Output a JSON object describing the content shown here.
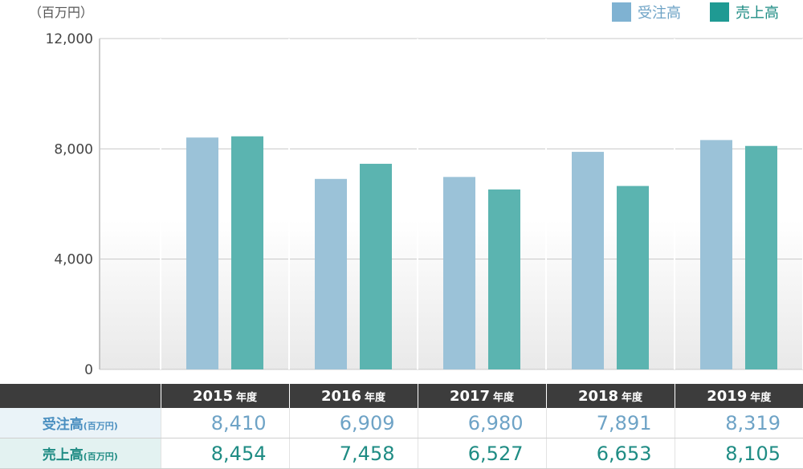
{
  "unit_label": "（百万円）",
  "legend": [
    {
      "label": "受注高",
      "color": "#7fb2d2"
    },
    {
      "label": "売上高",
      "color": "#1f9a93"
    }
  ],
  "table": {
    "years": [
      "2015",
      "2016",
      "2017",
      "2018",
      "2019"
    ],
    "year_suffix": "年度",
    "rows": [
      {
        "label": "受注高",
        "unit": "(百万円)",
        "values": [
          "8,410",
          "6,909",
          "6,980",
          "7,891",
          "8,319"
        ]
      },
      {
        "label": "売上高",
        "unit": "(百万円)",
        "values": [
          "8,454",
          "7,458",
          "6,527",
          "6,653",
          "8,105"
        ]
      }
    ]
  },
  "chart_data": {
    "type": "bar",
    "categories": [
      "2015",
      "2016",
      "2017",
      "2018",
      "2019"
    ],
    "series": [
      {
        "name": "受注高",
        "values": [
          8410,
          6909,
          6980,
          7891,
          8319
        ],
        "color": "#9bc2d8"
      },
      {
        "name": "売上高",
        "values": [
          8454,
          7458,
          6527,
          6653,
          8105
        ],
        "color": "#5bb4b0"
      }
    ],
    "yticks": [
      "0",
      "4,000",
      "8,000",
      "12,000"
    ],
    "ytick_values": [
      0,
      4000,
      8000,
      12000
    ],
    "ylim": [
      0,
      12000
    ],
    "legend_position": "top-right",
    "grid": true
  }
}
